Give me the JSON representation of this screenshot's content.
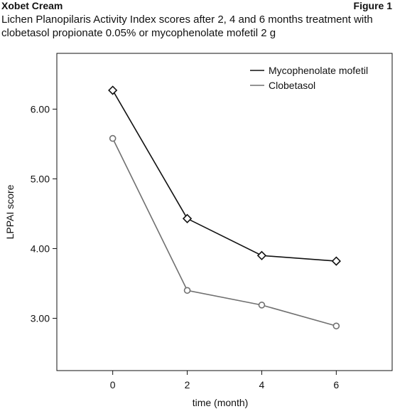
{
  "header": {
    "product": "Xobet Cream",
    "figure_label": "Figure 1"
  },
  "caption_lines": [
    "Lichen Planopilaris Activity Index scores after 2, 4 and 6 months treatment with",
    "clobetasol propionate 0.05% or mycophenolate mofetil 2 g"
  ],
  "chart_data": {
    "type": "line",
    "xlabel": "time (month)",
    "ylabel": "LPPAI score",
    "x": [
      0,
      2,
      4,
      6
    ],
    "x_ticks": [
      "0",
      "2",
      "4",
      "6"
    ],
    "y_ticks": [
      "3.00",
      "4.00",
      "5.00",
      "6.00"
    ],
    "y_tick_values": [
      3,
      4,
      5,
      6
    ],
    "xlim": [
      -1.5,
      7.5
    ],
    "ylim": [
      2.25,
      6.8
    ],
    "grid": false,
    "legend_position": "top-right",
    "series": [
      {
        "name": "Mycophenolate mofetil",
        "values": [
          6.27,
          4.43,
          3.9,
          3.82
        ],
        "color": "#111111",
        "marker": "diamond"
      },
      {
        "name": "Clobetasol",
        "values": [
          5.58,
          3.4,
          3.19,
          2.89
        ],
        "color": "#707070",
        "marker": "circle"
      }
    ]
  }
}
